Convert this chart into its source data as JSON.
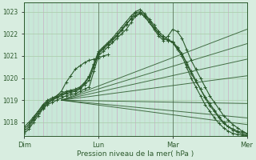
{
  "xlabel": "Pression niveau de la mer( hPa )",
  "bg_color": "#d8ede0",
  "plot_bg_color": "#c8e8d8",
  "line_color": "#2d5a2d",
  "grid_color_v": "#c8b8c8",
  "grid_color_h": "#a8cca8",
  "tick_label_color": "#2d5a2d",
  "ylim": [
    1017.4,
    1023.4
  ],
  "yticks": [
    1018,
    1019,
    1020,
    1021,
    1022,
    1023
  ],
  "xtick_labels": [
    "Dim",
    "Lun",
    "Mar",
    "Mer"
  ],
  "xtick_positions": [
    0,
    96,
    192,
    288
  ],
  "total_hours": 288,
  "marker_lines": [
    {
      "x": [
        0,
        6,
        12,
        18,
        24,
        30,
        36,
        42,
        48,
        54,
        60,
        66,
        72,
        78,
        84,
        90,
        96,
        102,
        108,
        114,
        120,
        126,
        132,
        138,
        144,
        150,
        156,
        162,
        168,
        174,
        180,
        186,
        192,
        198,
        204,
        210,
        216,
        222,
        228,
        234,
        240,
        246,
        252,
        258,
        264,
        270,
        276,
        282,
        288
      ],
      "y": [
        1017.5,
        1017.7,
        1018.0,
        1018.3,
        1018.6,
        1018.8,
        1018.9,
        1019.0,
        1019.1,
        1019.2,
        1019.25,
        1019.3,
        1019.4,
        1019.5,
        1019.6,
        1020.3,
        1021.0,
        1021.2,
        1021.4,
        1021.6,
        1021.8,
        1022.0,
        1022.2,
        1022.5,
        1022.8,
        1022.9,
        1022.8,
        1022.5,
        1022.2,
        1021.9,
        1021.7,
        1021.9,
        1022.2,
        1022.1,
        1021.8,
        1021.3,
        1020.8,
        1020.4,
        1020.0,
        1019.6,
        1019.2,
        1018.9,
        1018.6,
        1018.3,
        1018.1,
        1017.9,
        1017.75,
        1017.6,
        1017.5
      ]
    },
    {
      "x": [
        0,
        6,
        12,
        18,
        24,
        30,
        36,
        42,
        48,
        54,
        60,
        66,
        72,
        78,
        84,
        90,
        96,
        102,
        108,
        114,
        120,
        126,
        132,
        138,
        144,
        150,
        156,
        162,
        168,
        174,
        180,
        186,
        192,
        198,
        204,
        210,
        216,
        222,
        228,
        234,
        240,
        246,
        252,
        258,
        264,
        270,
        276,
        282,
        288
      ],
      "y": [
        1017.6,
        1017.8,
        1018.1,
        1018.4,
        1018.7,
        1018.9,
        1019.0,
        1019.1,
        1019.2,
        1019.3,
        1019.35,
        1019.4,
        1019.5,
        1019.7,
        1019.9,
        1020.5,
        1021.1,
        1021.3,
        1021.5,
        1021.7,
        1021.9,
        1022.15,
        1022.4,
        1022.7,
        1022.95,
        1023.0,
        1022.85,
        1022.6,
        1022.3,
        1022.0,
        1021.8,
        1021.7,
        1021.65,
        1021.4,
        1021.1,
        1020.7,
        1020.3,
        1019.9,
        1019.5,
        1019.1,
        1018.75,
        1018.5,
        1018.2,
        1017.95,
        1017.8,
        1017.7,
        1017.6,
        1017.55,
        1017.5
      ]
    },
    {
      "x": [
        0,
        6,
        12,
        18,
        24,
        30,
        36,
        42,
        48,
        54,
        60,
        66,
        72,
        78,
        84,
        90,
        96,
        102,
        108,
        114,
        120,
        126,
        132,
        138,
        144,
        150,
        156,
        162,
        168,
        174,
        180,
        186,
        192,
        198,
        204,
        210,
        216,
        222,
        228,
        234,
        240,
        246,
        252,
        258,
        264,
        270,
        276,
        282,
        288
      ],
      "y": [
        1017.7,
        1017.9,
        1018.2,
        1018.5,
        1018.8,
        1019.0,
        1019.1,
        1019.2,
        1019.3,
        1019.4,
        1019.45,
        1019.5,
        1019.6,
        1019.8,
        1020.1,
        1020.65,
        1021.2,
        1021.4,
        1021.6,
        1021.8,
        1022.05,
        1022.3,
        1022.55,
        1022.8,
        1023.0,
        1023.1,
        1022.9,
        1022.65,
        1022.4,
        1022.1,
        1021.9,
        1021.75,
        1021.6,
        1021.3,
        1021.0,
        1020.5,
        1020.0,
        1019.6,
        1019.2,
        1018.8,
        1018.5,
        1018.2,
        1017.95,
        1017.75,
        1017.6,
        1017.5,
        1017.45,
        1017.42,
        1017.4
      ]
    },
    {
      "x": [
        0,
        6,
        12,
        18,
        24,
        30,
        36,
        42,
        48,
        54,
        60,
        66,
        72,
        78,
        84,
        90,
        96,
        102,
        108,
        114,
        120,
        126,
        132,
        138,
        144,
        150,
        156,
        162,
        168,
        174,
        180,
        186,
        192,
        198,
        204,
        210,
        216,
        222,
        228,
        234,
        240,
        246,
        252,
        258,
        264,
        270,
        276,
        282,
        288
      ],
      "y": [
        1017.8,
        1018.0,
        1018.25,
        1018.5,
        1018.75,
        1018.95,
        1019.05,
        1019.15,
        1019.25,
        1019.35,
        1019.4,
        1019.45,
        1019.55,
        1019.75,
        1020.05,
        1020.6,
        1021.15,
        1021.35,
        1021.55,
        1021.75,
        1021.95,
        1022.2,
        1022.45,
        1022.65,
        1022.85,
        1022.95,
        1022.75,
        1022.5,
        1022.25,
        1022.0,
        1021.8,
        1021.7,
        1021.6,
        1021.35,
        1021.1,
        1020.65,
        1020.2,
        1019.85,
        1019.5,
        1019.15,
        1018.85,
        1018.55,
        1018.25,
        1018.0,
        1017.8,
        1017.65,
        1017.55,
        1017.48,
        1017.42
      ]
    },
    {
      "x": [
        6,
        12,
        18,
        24,
        30,
        36,
        42,
        48,
        54,
        60,
        66,
        72,
        78,
        84,
        90,
        96,
        102,
        108
      ],
      "y": [
        1017.9,
        1018.15,
        1018.4,
        1018.65,
        1018.85,
        1019.0,
        1019.2,
        1019.4,
        1019.8,
        1020.1,
        1020.4,
        1020.55,
        1020.7,
        1020.8,
        1020.85,
        1020.9,
        1021.0,
        1021.05
      ]
    }
  ],
  "straight_lines": [
    {
      "x": [
        48,
        288
      ],
      "y": [
        1019.0,
        1022.2
      ]
    },
    {
      "x": [
        48,
        288
      ],
      "y": [
        1019.0,
        1021.55
      ]
    },
    {
      "x": [
        48,
        288
      ],
      "y": [
        1019.0,
        1020.85
      ]
    },
    {
      "x": [
        48,
        288
      ],
      "y": [
        1019.0,
        1020.1
      ]
    },
    {
      "x": [
        48,
        288
      ],
      "y": [
        1019.0,
        1018.85
      ]
    },
    {
      "x": [
        48,
        288
      ],
      "y": [
        1019.0,
        1018.2
      ]
    },
    {
      "x": [
        48,
        288
      ],
      "y": [
        1019.0,
        1017.9
      ]
    }
  ]
}
